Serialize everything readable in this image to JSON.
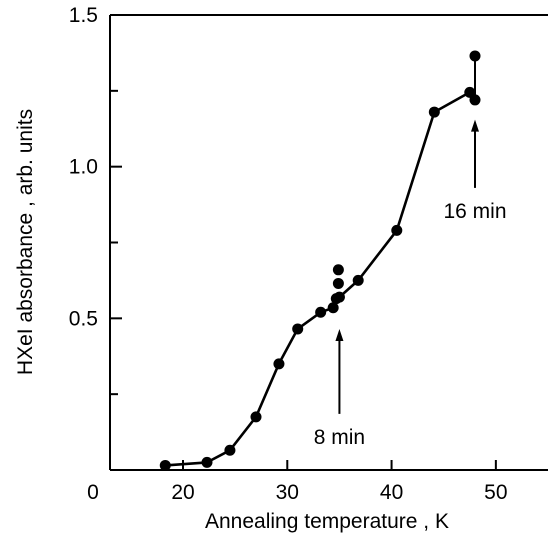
{
  "chart_data": {
    "type": "scatter",
    "xlabel": "Annealing temperature , K",
    "ylabel": "HXeI  absorbance , arb. units",
    "xlim": [
      13,
      55
    ],
    "ylim": [
      0,
      1.5
    ],
    "x_ticks": [
      20,
      30,
      40,
      50
    ],
    "x_tick_labels": [
      "20",
      "30",
      "40",
      "50"
    ],
    "y_ticks": [
      0.5,
      1.0,
      1.5
    ],
    "y_tick_labels": [
      "0.5",
      "1.0",
      "1.5"
    ],
    "y_extra_ticks": [
      0.25,
      0.75,
      1.25
    ],
    "origin_label": "0",
    "grid": false,
    "series": [
      {
        "line_x": [
          18.3,
          22.3,
          24.5,
          27.0,
          29.2,
          31.0,
          33.2,
          34.4,
          34.9,
          35.0,
          36.8,
          40.5,
          44.1,
          47.5,
          48.0
        ],
        "line_y": [
          0.015,
          0.025,
          0.065,
          0.175,
          0.35,
          0.465,
          0.52,
          0.535,
          0.565,
          0.57,
          0.625,
          0.79,
          1.18,
          1.245,
          1.22
        ],
        "points_x": [
          18.3,
          22.3,
          24.5,
          27.0,
          29.2,
          31.0,
          33.2,
          34.4,
          34.7,
          34.9,
          34.9,
          35.0,
          36.8,
          40.5,
          44.1,
          47.5,
          48.0,
          48.0
        ],
        "points_y": [
          0.015,
          0.025,
          0.065,
          0.175,
          0.35,
          0.465,
          0.52,
          0.535,
          0.565,
          0.615,
          0.66,
          0.57,
          0.625,
          0.79,
          1.18,
          1.245,
          1.22,
          1.365
        ]
      }
    ],
    "annotations": [
      {
        "text": "8 min",
        "arrow_x": 35.0,
        "arrow_tip_y": 0.465,
        "arrow_tail_y": 0.185
      },
      {
        "text": "16 min",
        "arrow_x": 48.0,
        "arrow_tip_y": 1.155,
        "arrow_tail_y": 0.93
      }
    ]
  }
}
